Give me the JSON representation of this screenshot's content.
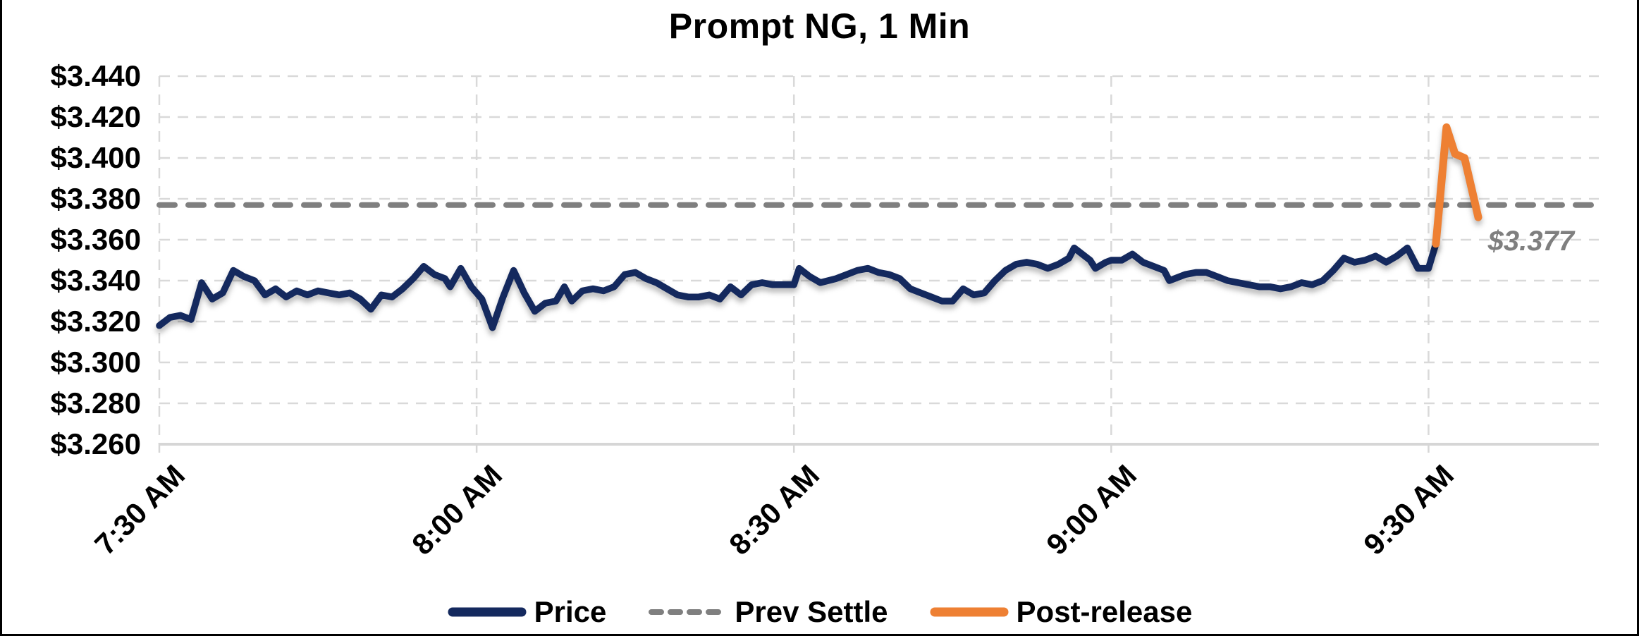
{
  "title": "Prompt NG, 1 Min",
  "annotation": {
    "label": "$3.377"
  },
  "colors": {
    "price": "#14295e",
    "post_release": "#ee8033",
    "prev_settle": "#7f7f7f",
    "gridline": "#d9d9d9",
    "axis_line": "#d6d6d6",
    "annotation_text": "#7f7f7f",
    "title_text": "#000000",
    "border": "#000000"
  },
  "legend": [
    {
      "label": "Price",
      "style": "solid",
      "color": "#14295e"
    },
    {
      "label": "Prev Settle",
      "style": "dashed",
      "color": "#7f7f7f"
    },
    {
      "label": "Post-release",
      "style": "solid",
      "color": "#ee8033"
    }
  ],
  "chart_data": {
    "type": "line",
    "title": "Prompt NG, 1 Min",
    "xlabel": "",
    "ylabel": "",
    "x_unit": "minutes since 7:30 AM",
    "xlim": [
      0,
      136.1
    ],
    "ylim": [
      3.26,
      3.44
    ],
    "grid": true,
    "legend_position": "bottom",
    "y_ticks": [
      {
        "v": 3.44,
        "label": "$3.440"
      },
      {
        "v": 3.42,
        "label": "$3.420"
      },
      {
        "v": 3.4,
        "label": "$3.400"
      },
      {
        "v": 3.38,
        "label": "$3.380"
      },
      {
        "v": 3.36,
        "label": "$3.360"
      },
      {
        "v": 3.34,
        "label": "$3.340"
      },
      {
        "v": 3.32,
        "label": "$3.320"
      },
      {
        "v": 3.3,
        "label": "$3.300"
      },
      {
        "v": 3.28,
        "label": "$3.280"
      },
      {
        "v": 3.26,
        "label": "$3.260"
      }
    ],
    "x_ticks": [
      {
        "t": 0,
        "label": "7:30 AM"
      },
      {
        "t": 30,
        "label": "8:00 AM"
      },
      {
        "t": 60,
        "label": "8:30 AM"
      },
      {
        "t": 90,
        "label": "9:00 AM"
      },
      {
        "t": 120,
        "label": "9:30 AM"
      }
    ],
    "prev_settle_value": 3.377,
    "prev_settle_label": "$3.377",
    "series": [
      {
        "name": "Price",
        "color": "#14295e",
        "style": "solid",
        "points": [
          [
            0,
            3.318
          ],
          [
            1,
            3.322
          ],
          [
            2,
            3.323
          ],
          [
            3,
            3.321
          ],
          [
            4,
            3.339
          ],
          [
            5,
            3.331
          ],
          [
            6,
            3.334
          ],
          [
            7,
            3.345
          ],
          [
            8,
            3.342
          ],
          [
            9,
            3.34
          ],
          [
            10,
            3.333
          ],
          [
            11,
            3.336
          ],
          [
            12,
            3.332
          ],
          [
            13,
            3.335
          ],
          [
            14,
            3.333
          ],
          [
            15,
            3.335
          ],
          [
            16,
            3.334
          ],
          [
            17,
            3.333
          ],
          [
            18,
            3.334
          ],
          [
            19,
            3.331
          ],
          [
            20,
            3.326
          ],
          [
            21,
            3.333
          ],
          [
            22,
            3.332
          ],
          [
            23,
            3.336
          ],
          [
            24,
            3.341
          ],
          [
            25,
            3.347
          ],
          [
            26,
            3.343
          ],
          [
            27,
            3.341
          ],
          [
            27.5,
            3.337
          ],
          [
            28.5,
            3.346
          ],
          [
            29.5,
            3.337
          ],
          [
            30.5,
            3.331
          ],
          [
            31.5,
            3.317
          ],
          [
            32.5,
            3.332
          ],
          [
            33.5,
            3.345
          ],
          [
            34.5,
            3.334
          ],
          [
            35.5,
            3.325
          ],
          [
            36.5,
            3.329
          ],
          [
            37.5,
            3.33
          ],
          [
            38.3,
            3.337
          ],
          [
            39,
            3.33
          ],
          [
            40,
            3.335
          ],
          [
            41,
            3.336
          ],
          [
            42,
            3.335
          ],
          [
            43,
            3.337
          ],
          [
            44,
            3.343
          ],
          [
            45,
            3.344
          ],
          [
            46,
            3.341
          ],
          [
            47,
            3.339
          ],
          [
            48,
            3.336
          ],
          [
            49,
            3.333
          ],
          [
            50,
            3.332
          ],
          [
            51,
            3.332
          ],
          [
            52,
            3.333
          ],
          [
            53,
            3.331
          ],
          [
            54,
            3.337
          ],
          [
            55,
            3.333
          ],
          [
            56,
            3.338
          ],
          [
            57,
            3.339
          ],
          [
            58,
            3.338
          ],
          [
            59,
            3.338
          ],
          [
            60,
            3.338
          ],
          [
            60.5,
            3.346
          ],
          [
            61.5,
            3.342
          ],
          [
            62.5,
            3.339
          ],
          [
            64,
            3.341
          ],
          [
            65,
            3.343
          ],
          [
            66,
            3.345
          ],
          [
            67,
            3.346
          ],
          [
            68,
            3.344
          ],
          [
            69,
            3.343
          ],
          [
            70,
            3.341
          ],
          [
            71,
            3.336
          ],
          [
            72,
            3.334
          ],
          [
            73,
            3.332
          ],
          [
            74,
            3.33
          ],
          [
            75,
            3.33
          ],
          [
            76,
            3.336
          ],
          [
            77,
            3.333
          ],
          [
            78,
            3.334
          ],
          [
            79,
            3.34
          ],
          [
            80,
            3.345
          ],
          [
            81,
            3.348
          ],
          [
            82,
            3.349
          ],
          [
            83,
            3.348
          ],
          [
            84,
            3.346
          ],
          [
            85,
            3.348
          ],
          [
            86,
            3.351
          ],
          [
            86.5,
            3.356
          ],
          [
            87,
            3.354
          ],
          [
            88,
            3.35
          ],
          [
            88.5,
            3.346
          ],
          [
            89.5,
            3.349
          ],
          [
            90,
            3.35
          ],
          [
            91,
            3.35
          ],
          [
            92,
            3.353
          ],
          [
            93,
            3.349
          ],
          [
            94,
            3.347
          ],
          [
            95,
            3.345
          ],
          [
            95.5,
            3.34
          ],
          [
            96,
            3.341
          ],
          [
            97,
            3.343
          ],
          [
            98,
            3.344
          ],
          [
            99,
            3.344
          ],
          [
            100,
            3.342
          ],
          [
            101,
            3.34
          ],
          [
            102,
            3.339
          ],
          [
            103,
            3.338
          ],
          [
            104,
            3.337
          ],
          [
            105,
            3.337
          ],
          [
            106,
            3.336
          ],
          [
            107,
            3.337
          ],
          [
            108,
            3.339
          ],
          [
            109,
            3.338
          ],
          [
            110,
            3.34
          ],
          [
            111,
            3.345
          ],
          [
            112,
            3.351
          ],
          [
            113,
            3.349
          ],
          [
            114,
            3.35
          ],
          [
            115,
            3.352
          ],
          [
            116,
            3.349
          ],
          [
            117,
            3.352
          ],
          [
            118,
            3.356
          ],
          [
            119,
            3.346
          ],
          [
            120,
            3.346
          ],
          [
            120.7,
            3.358
          ]
        ]
      },
      {
        "name": "Post-release",
        "color": "#ee8033",
        "style": "solid",
        "points": [
          [
            120.7,
            3.358
          ],
          [
            121.7,
            3.415
          ],
          [
            122.5,
            3.402
          ],
          [
            123.4,
            3.4
          ],
          [
            124.7,
            3.371
          ]
        ]
      }
    ]
  }
}
